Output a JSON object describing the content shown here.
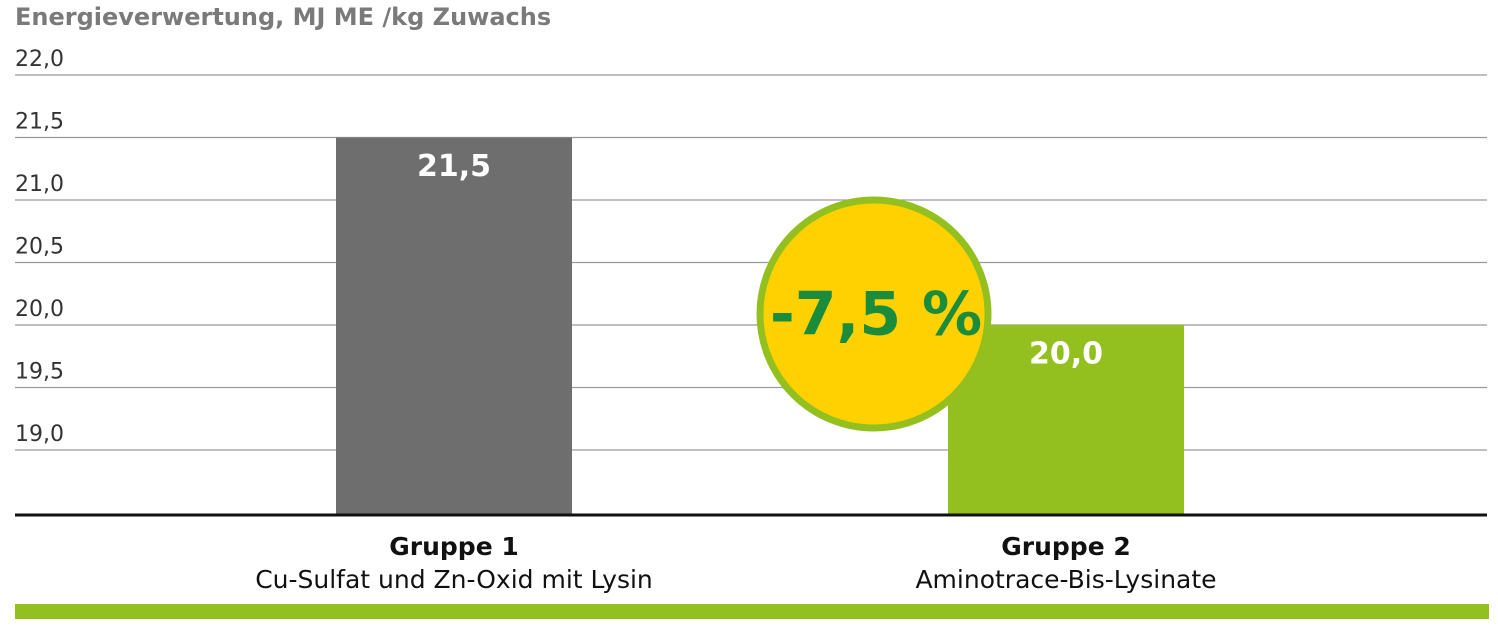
{
  "chart_data": {
    "type": "bar",
    "title": "Energieverwertung, MJ ME /kg Zuwachs",
    "categories": [
      "Gruppe 1",
      "Gruppe 2"
    ],
    "category_descriptions": [
      "Cu-Sulfat und Zn-Oxid mit Lysin",
      "Aminotrace-Bis-Lysinate"
    ],
    "values": [
      21.5,
      20.0
    ],
    "value_labels": [
      "21,5",
      "20,0"
    ],
    "colors": [
      "#6e6e6e",
      "#93c01f"
    ],
    "annotation": "-7,5 %",
    "ylim": [
      18.48,
      22.0
    ],
    "yticks": [
      {
        "value": 19.0,
        "label": "19,0"
      },
      {
        "value": 19.5,
        "label": "19,5"
      },
      {
        "value": 20.0,
        "label": "20,0"
      },
      {
        "value": 20.5,
        "label": "20,5"
      },
      {
        "value": 21.0,
        "label": "21,0"
      },
      {
        "value": 21.5,
        "label": "21,5"
      },
      {
        "value": 22.0,
        "label": "22,0"
      }
    ],
    "grid": true
  }
}
